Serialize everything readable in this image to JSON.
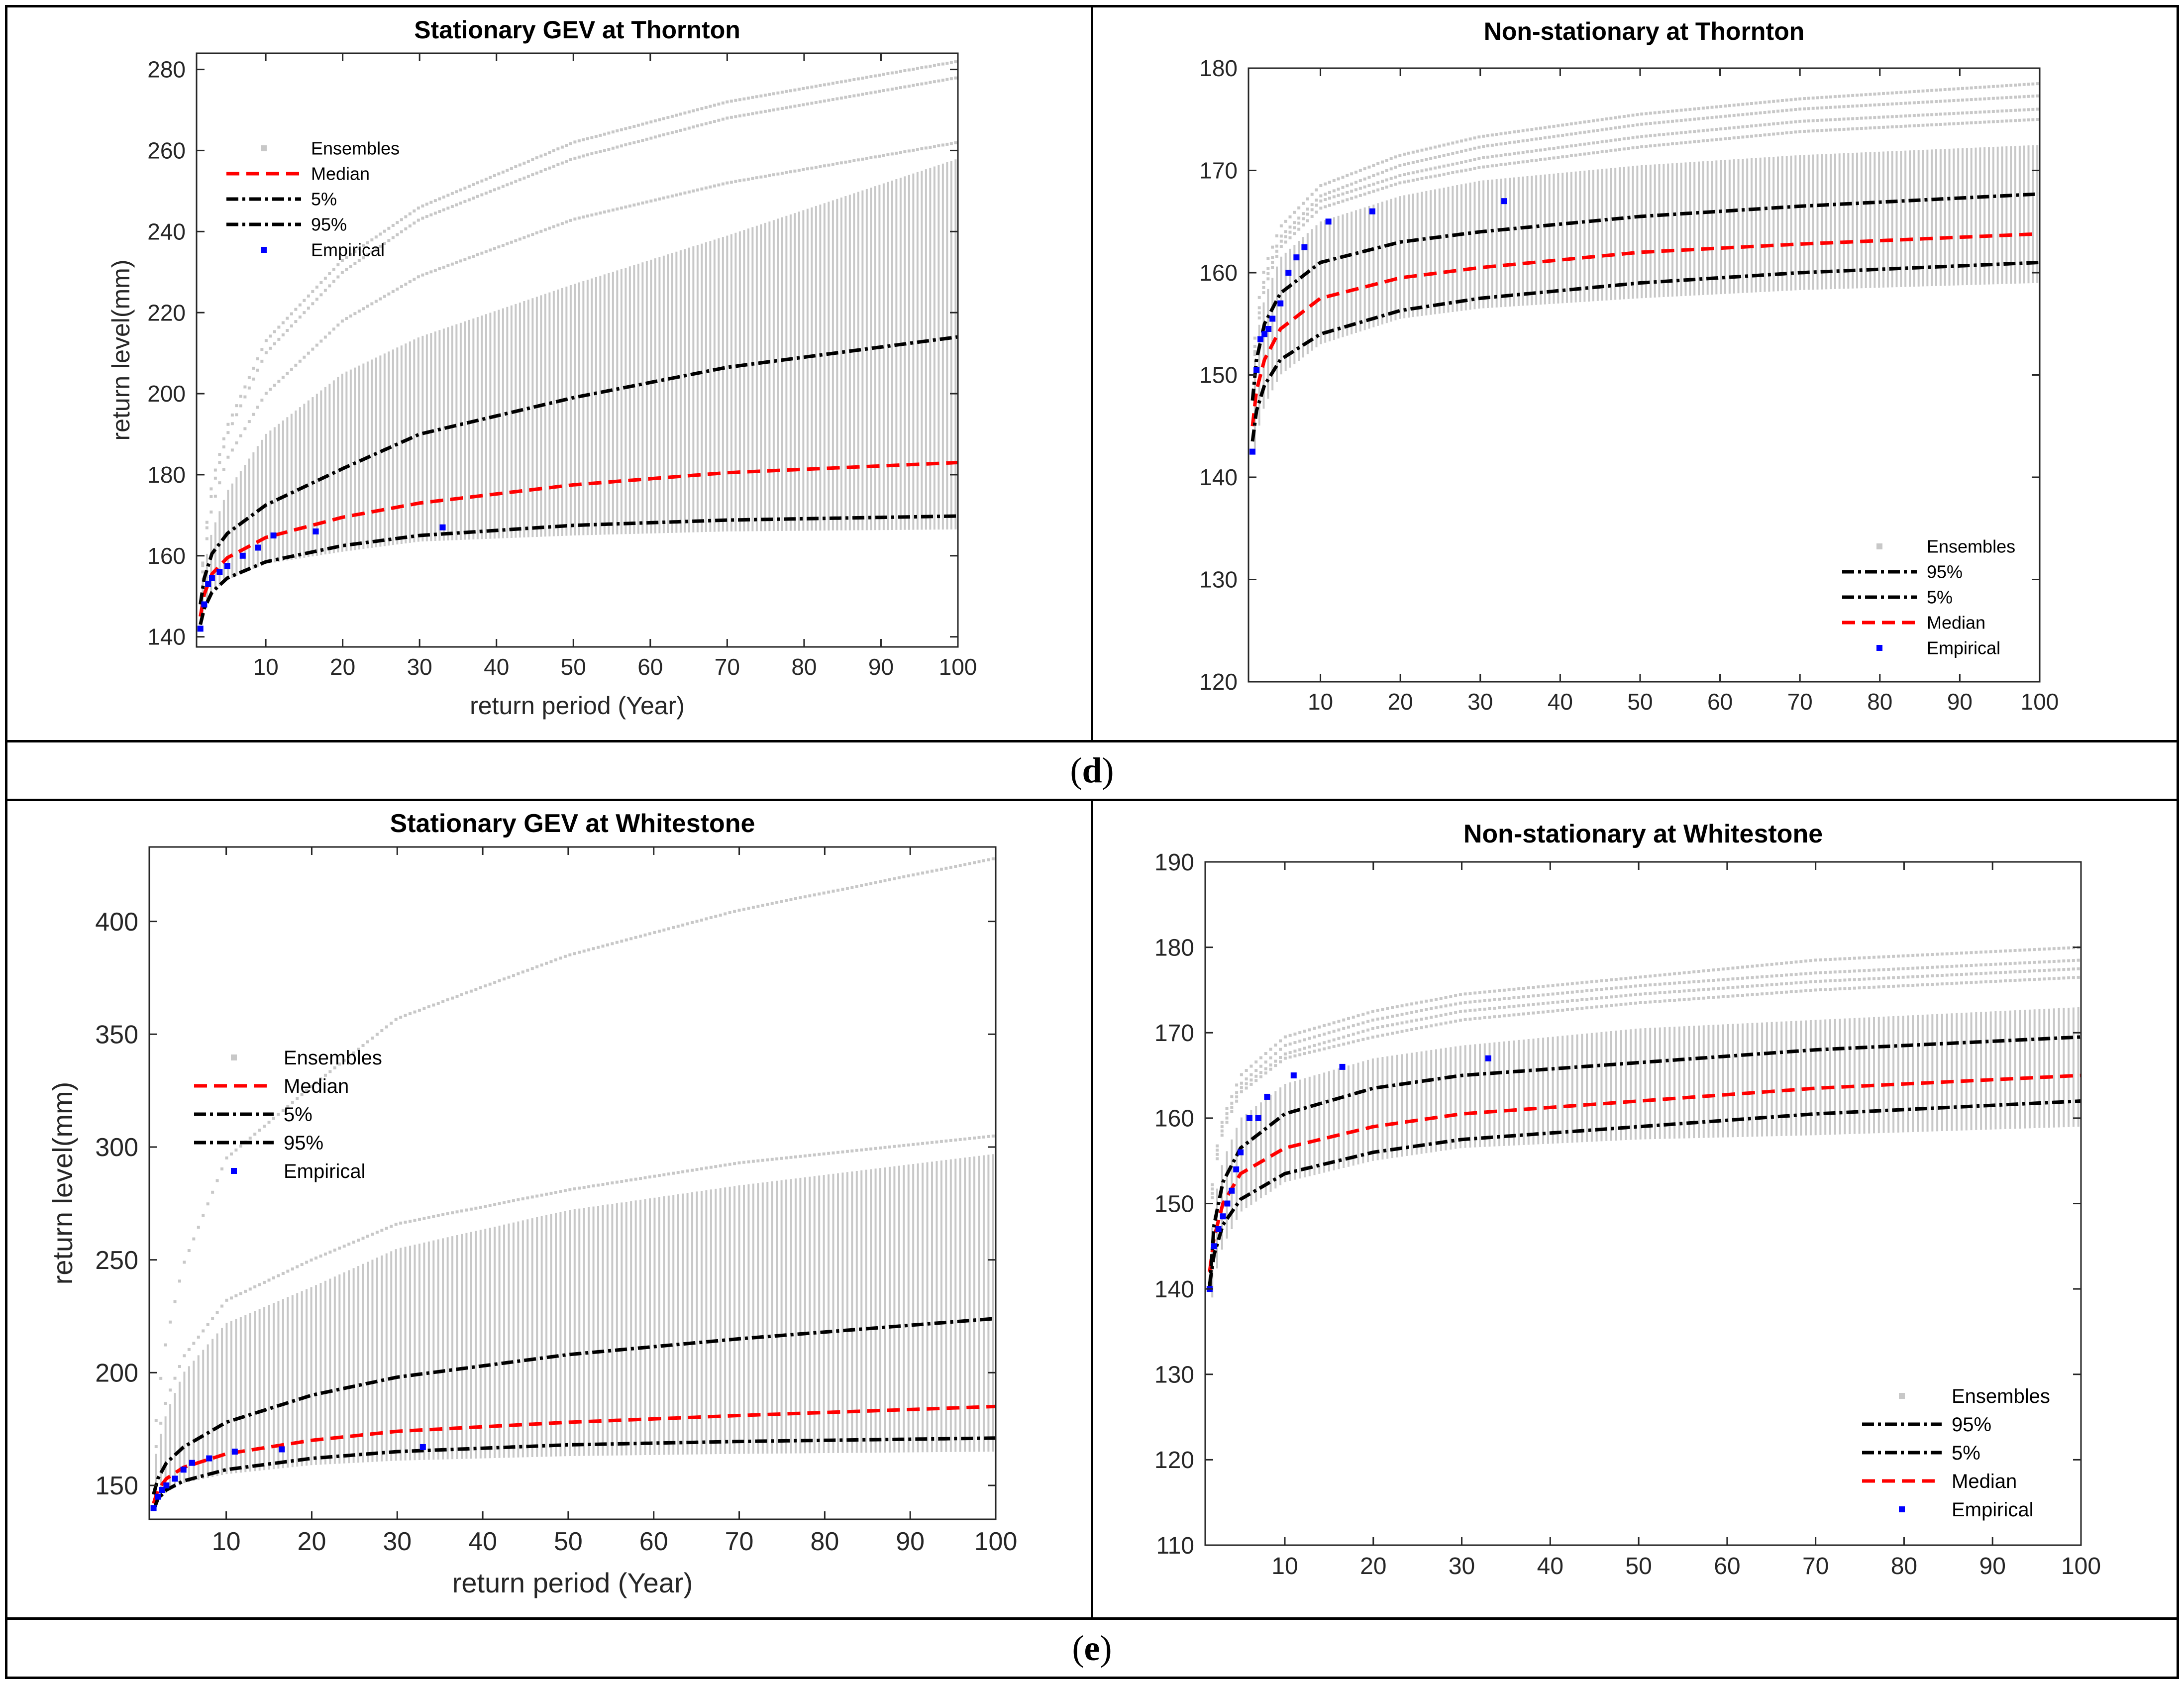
{
  "captions": {
    "d": "d",
    "e": "e"
  },
  "colors": {
    "ensemble": "#c8c8c8",
    "median": "#ff0000",
    "bound": "#000000",
    "empirical": "#0000ff",
    "axis": "#262626",
    "frame": "#000000"
  },
  "chart_data": [
    {
      "id": "d-left",
      "type": "line",
      "title": "Stationary GEV at Thornton",
      "xlabel": "return period (Year)",
      "ylabel": "return level(mm)",
      "xlim": [
        1,
        100
      ],
      "ylim": [
        137.5,
        284
      ],
      "xticks": [
        10,
        20,
        30,
        40,
        50,
        60,
        70,
        80,
        90,
        100
      ],
      "yticks": [
        140,
        160,
        180,
        200,
        220,
        240,
        260,
        280
      ],
      "legend_order": [
        "Ensembles",
        "Median",
        "5%",
        "95%",
        "Empirical"
      ],
      "legend_position": "upper-left",
      "series": [
        {
          "name": "Median",
          "x": [
            1.5,
            2,
            3,
            5,
            10,
            20,
            30,
            50,
            70,
            100
          ],
          "values": [
            145,
            150.5,
            155.5,
            159.5,
            164.5,
            169.5,
            173,
            177.5,
            180.5,
            183
          ]
        },
        {
          "name": "5%",
          "x": [
            1.5,
            2,
            3,
            5,
            10,
            20,
            30,
            50,
            70,
            100
          ],
          "values": [
            143,
            147,
            151,
            154.5,
            158.5,
            162.5,
            165,
            167.5,
            168.8,
            169.8
          ]
        },
        {
          "name": "95%",
          "x": [
            1.5,
            2,
            3,
            5,
            10,
            20,
            30,
            50,
            70,
            100
          ],
          "values": [
            148,
            154.5,
            160.5,
            165.5,
            172.5,
            181.5,
            190,
            199,
            206.5,
            214
          ]
        },
        {
          "name": "Empirical",
          "x": [
            1.5,
            2,
            2.5,
            3,
            4,
            5,
            7,
            9,
            11,
            16.5,
            33
          ],
          "values": [
            142,
            148,
            153,
            154.5,
            156,
            157.5,
            160,
            162,
            165,
            166,
            167
          ]
        }
      ],
      "ensemble": {
        "band_low": [
          142,
          147,
          151,
          154,
          158,
          161,
          163.5,
          165,
          166,
          166.5
        ],
        "band_high": [
          150,
          157.5,
          166,
          176,
          190,
          205,
          214,
          227,
          239,
          258
        ],
        "upper_curves": [
          [
            151,
            163,
            178,
            192,
            213,
            233,
            246,
            262,
            272,
            282
          ],
          [
            151,
            162,
            176,
            190,
            210,
            230,
            243,
            258,
            268,
            278
          ],
          [
            150,
            160,
            172,
            184,
            200,
            218,
            229,
            243,
            252,
            262
          ]
        ]
      }
    },
    {
      "id": "d-right",
      "type": "line",
      "title": "Non-stationary at Thornton",
      "xlabel": "",
      "ylabel": "",
      "xlim": [
        1,
        100
      ],
      "ylim": [
        120,
        180
      ],
      "xticks": [
        10,
        20,
        30,
        40,
        50,
        60,
        70,
        80,
        90,
        100
      ],
      "yticks": [
        120,
        130,
        140,
        150,
        160,
        170,
        180
      ],
      "legend_order": [
        "Ensembles",
        "95%",
        "5%",
        "Median",
        "Empirical"
      ],
      "legend_position": "lower-right",
      "series": [
        {
          "name": "Median",
          "x": [
            1.5,
            2,
            3,
            5,
            10,
            20,
            30,
            50,
            70,
            100
          ],
          "values": [
            145,
            148.5,
            151.5,
            154.5,
            157.5,
            159.5,
            160.5,
            162,
            162.8,
            163.8
          ]
        },
        {
          "name": "5%",
          "x": [
            1.5,
            2,
            3,
            5,
            10,
            20,
            30,
            50,
            70,
            100
          ],
          "values": [
            143.5,
            146.5,
            149,
            151.5,
            154,
            156.3,
            157.5,
            159,
            160,
            161
          ]
        },
        {
          "name": "95%",
          "x": [
            1.5,
            2,
            3,
            5,
            10,
            20,
            30,
            50,
            70,
            100
          ],
          "values": [
            147.5,
            151.5,
            155,
            158,
            161,
            163,
            164,
            165.5,
            166.5,
            167.7
          ]
        },
        {
          "name": "Empirical",
          "x": [
            1.5,
            2,
            2.5,
            3,
            3.5,
            4,
            5,
            6,
            7,
            8,
            11,
            16.5,
            33
          ],
          "values": [
            142.5,
            150.5,
            153.5,
            154,
            154.5,
            155.5,
            157,
            160,
            161.5,
            162.5,
            165,
            166,
            167
          ]
        }
      ],
      "ensemble": {
        "band_low": [
          141,
          144,
          147,
          150,
          153,
          155.5,
          156.5,
          157.5,
          158.3,
          159
        ],
        "band_high": [
          148.5,
          153.5,
          157.5,
          161.5,
          165,
          167.5,
          169,
          170.5,
          171.5,
          172.5
        ],
        "upper_curves": [
          [
            150,
            156,
            160.5,
            164.5,
            168.5,
            171.5,
            173.3,
            175.5,
            177,
            178.5
          ],
          [
            149.5,
            155,
            159.5,
            163.5,
            167.5,
            170.5,
            172.3,
            174.5,
            176,
            177.3
          ],
          [
            149,
            154.5,
            159,
            163,
            167,
            169.5,
            171.2,
            173.3,
            174.8,
            176
          ],
          [
            149,
            154,
            158.5,
            162.5,
            166.3,
            168.8,
            170.3,
            172.3,
            173.8,
            175
          ]
        ]
      }
    },
    {
      "id": "e-left",
      "type": "line",
      "title": "Stationary GEV at Whitestone",
      "xlabel": "return period (Year)",
      "ylabel": "return level(mm)",
      "xlim": [
        1,
        100
      ],
      "ylim": [
        135,
        433
      ],
      "xticks": [
        10,
        20,
        30,
        40,
        50,
        60,
        70,
        80,
        90,
        100
      ],
      "yticks": [
        150,
        200,
        250,
        300,
        350,
        400
      ],
      "legend_order": [
        "Ensembles",
        "Median",
        "5%",
        "95%",
        "Empirical"
      ],
      "legend_position": "middle-left",
      "series": [
        {
          "name": "Median",
          "x": [
            1.5,
            2,
            3,
            5,
            10,
            20,
            30,
            50,
            70,
            100
          ],
          "values": [
            142,
            148,
            153,
            158,
            164,
            170,
            174,
            178,
            181,
            185
          ]
        },
        {
          "name": "5%",
          "x": [
            1.5,
            2,
            3,
            5,
            10,
            20,
            30,
            50,
            70,
            100
          ],
          "values": [
            139,
            144,
            148,
            152,
            157,
            162,
            165,
            168,
            169.5,
            171
          ]
        },
        {
          "name": "95%",
          "x": [
            1.5,
            2,
            3,
            5,
            10,
            20,
            30,
            50,
            70,
            100
          ],
          "values": [
            146,
            153,
            160,
            167,
            178,
            190,
            198,
            208,
            215,
            224
          ]
        },
        {
          "name": "Empirical",
          "x": [
            1.5,
            2,
            2.5,
            3,
            4,
            5,
            6,
            8,
            11,
            16.5,
            33
          ],
          "values": [
            140,
            145,
            148,
            150,
            153,
            157,
            160,
            162,
            165,
            166,
            167
          ]
        }
      ],
      "ensemble": {
        "band_low": [
          138,
          143,
          147,
          151,
          155,
          159,
          161,
          163,
          164,
          165
        ],
        "band_high": [
          158,
          168,
          182,
          200,
          222,
          238,
          255,
          272,
          283,
          297
        ],
        "upper_curves": [
          [
            165,
            188,
            215,
            248,
            295,
            327,
            357,
            385,
            405,
            428
          ],
          [
            160,
            172,
            188,
            207,
            232,
            250,
            266,
            281,
            293,
            305
          ]
        ]
      }
    },
    {
      "id": "e-right",
      "type": "line",
      "title": "Non-stationary at Whitestone",
      "xlabel": "",
      "ylabel": "",
      "xlim": [
        1,
        100
      ],
      "ylim": [
        110,
        190
      ],
      "xticks": [
        10,
        20,
        30,
        40,
        50,
        60,
        70,
        80,
        90,
        100
      ],
      "yticks": [
        110,
        120,
        130,
        140,
        150,
        160,
        170,
        180,
        190
      ],
      "legend_order": [
        "Ensembles",
        "95%",
        "5%",
        "Median",
        "Empirical"
      ],
      "legend_position": "lower-right",
      "series": [
        {
          "name": "Median",
          "x": [
            1.5,
            2,
            3,
            5,
            10,
            20,
            30,
            50,
            70,
            100
          ],
          "values": [
            142,
            146,
            150,
            153.5,
            156.5,
            159,
            160.5,
            162,
            163.5,
            165
          ]
        },
        {
          "name": "5%",
          "x": [
            1.5,
            2,
            3,
            5,
            10,
            20,
            30,
            50,
            70,
            100
          ],
          "values": [
            140.5,
            144,
            147.5,
            150.5,
            153.5,
            156,
            157.5,
            159,
            160.5,
            162
          ]
        },
        {
          "name": "95%",
          "x": [
            1.5,
            2,
            3,
            5,
            10,
            20,
            30,
            50,
            70,
            100
          ],
          "values": [
            140,
            147.5,
            152.5,
            156.5,
            160.5,
            163.5,
            165,
            166.5,
            168,
            169.5
          ]
        },
        {
          "name": "Empirical",
          "x": [
            1.5,
            2,
            2.5,
            3,
            3.5,
            4,
            4.5,
            5,
            6,
            7,
            8,
            11,
            16.5,
            33
          ],
          "values": [
            140,
            145,
            147,
            148.5,
            150,
            151.5,
            154,
            156,
            160,
            160,
            162.5,
            165,
            166,
            167
          ]
        }
      ],
      "ensemble": {
        "band_low": [
          136,
          141,
          145,
          149,
          152.5,
          155,
          156.5,
          157.5,
          158,
          159
        ],
        "band_high": [
          143,
          150,
          155,
          160,
          164,
          167,
          168.5,
          170.5,
          171.5,
          173
        ],
        "upper_curves": [
          [
            148,
            155,
            160,
            165,
            169.5,
            172.5,
            174.5,
            176.5,
            178.5,
            180
          ],
          [
            147.5,
            154.5,
            159.5,
            164,
            168.5,
            171.5,
            173.5,
            175.5,
            177,
            178.5
          ],
          [
            147,
            154,
            159,
            163.5,
            167.5,
            170.5,
            172.5,
            174.5,
            176,
            177.5
          ],
          [
            146.5,
            153.5,
            158.5,
            163,
            167,
            169.5,
            171.5,
            173.5,
            175,
            176.5
          ]
        ]
      }
    }
  ]
}
